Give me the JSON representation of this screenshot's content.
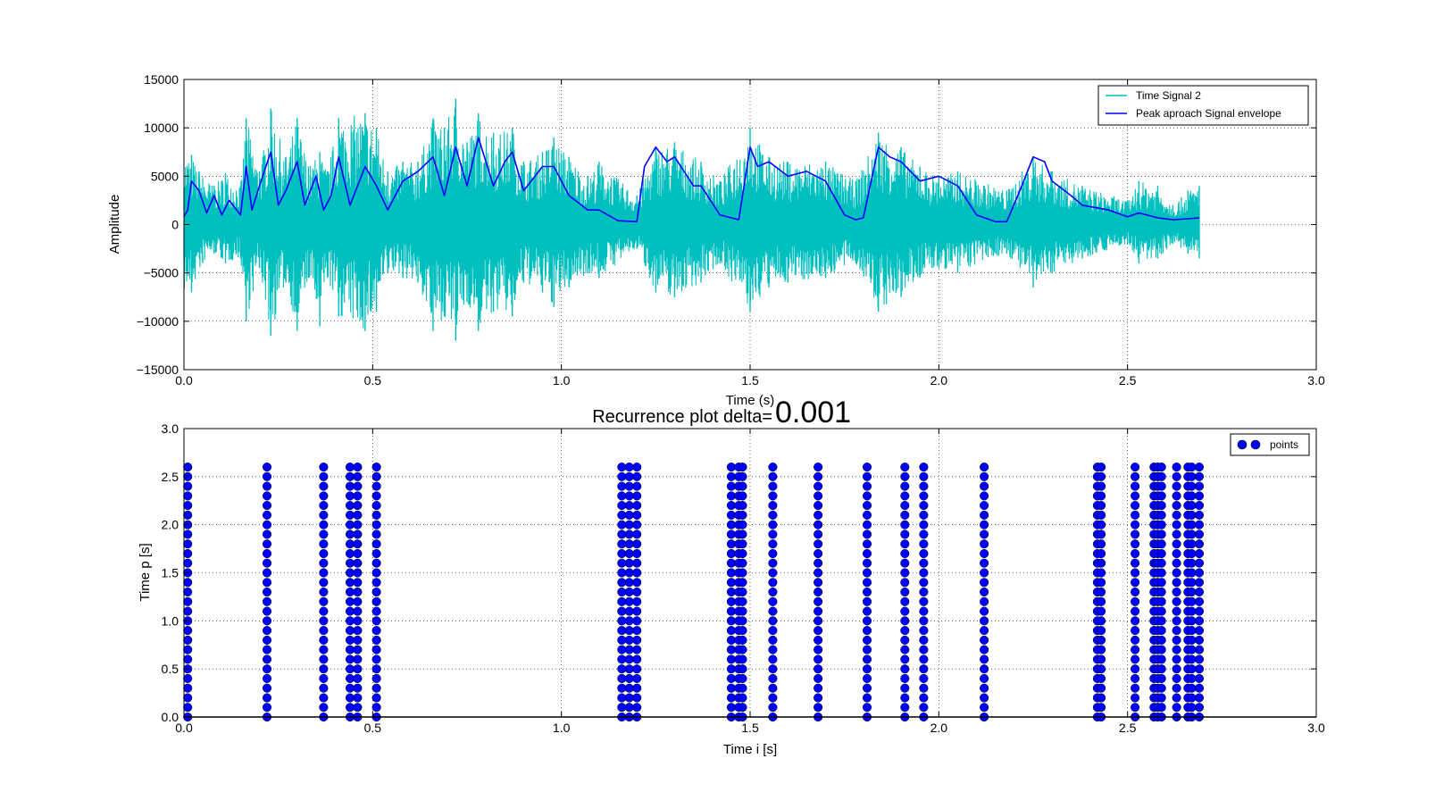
{
  "chart_data": [
    {
      "type": "line",
      "title": "",
      "xlabel": "Time (s)",
      "ylabel": "Amplitude",
      "xlim": [
        0.0,
        3.0
      ],
      "ylim": [
        -15000,
        15000
      ],
      "xticks": [
        "0.0",
        "0.5",
        "1.0",
        "1.5",
        "2.0",
        "2.5",
        "3.0"
      ],
      "yticks": [
        "15000",
        "10000",
        "5000",
        "0",
        "−5000",
        "−10000",
        "−15000"
      ],
      "xtick_values": [
        0.0,
        0.5,
        1.0,
        1.5,
        2.0,
        2.5,
        3.0
      ],
      "ytick_values": [
        15000,
        10000,
        5000,
        0,
        -5000,
        -10000,
        -15000
      ],
      "grid": true,
      "legend": "top-right",
      "signal_duration": 2.69,
      "series": [
        {
          "name": "Time Signal 2",
          "color": "#00bfbf",
          "description_peaks_pos": [
            [
              0.02,
              7200
            ],
            [
              0.04,
              5500
            ],
            [
              0.08,
              4000
            ],
            [
              0.11,
              5300
            ],
            [
              0.15,
              4000
            ],
            [
              0.165,
              11000
            ],
            [
              0.2,
              5500
            ],
            [
              0.23,
              12000
            ],
            [
              0.27,
              7000
            ],
            [
              0.3,
              11000
            ],
            [
              0.33,
              6000
            ],
            [
              0.36,
              7500
            ],
            [
              0.38,
              5500
            ],
            [
              0.41,
              11000
            ],
            [
              0.48,
              11500
            ],
            [
              0.51,
              10000
            ],
            [
              0.54,
              5500
            ],
            [
              0.58,
              6500
            ],
            [
              0.62,
              6500
            ],
            [
              0.66,
              11000
            ],
            [
              0.69,
              10000
            ],
            [
              0.72,
              13000
            ],
            [
              0.75,
              8500
            ],
            [
              0.78,
              11500
            ],
            [
              0.82,
              9500
            ],
            [
              0.87,
              10000
            ],
            [
              0.9,
              6500
            ],
            [
              0.95,
              7500
            ],
            [
              0.98,
              9000
            ],
            [
              1.02,
              7000
            ],
            [
              1.07,
              5000
            ],
            [
              1.1,
              6500
            ],
            [
              1.2,
              3000
            ],
            [
              1.25,
              8000
            ],
            [
              1.3,
              8500
            ],
            [
              1.37,
              6500
            ],
            [
              1.42,
              4500
            ],
            [
              1.5,
              10000
            ],
            [
              1.55,
              7000
            ],
            [
              1.6,
              6500
            ],
            [
              1.7,
              6500
            ],
            [
              1.78,
              4500
            ],
            [
              1.84,
              9500
            ],
            [
              1.9,
              8000
            ],
            [
              1.95,
              6000
            ],
            [
              2.0,
              5000
            ],
            [
              2.05,
              5500
            ],
            [
              2.18,
              3500
            ],
            [
              2.25,
              7000
            ],
            [
              2.3,
              5500
            ],
            [
              2.38,
              4000
            ],
            [
              2.5,
              2500
            ],
            [
              2.53,
              4500
            ],
            [
              2.58,
              4000
            ],
            [
              2.62,
              2000
            ],
            [
              2.66,
              3500
            ],
            [
              2.69,
              4000
            ]
          ],
          "description_peaks_neg": [
            [
              0.02,
              -7000
            ],
            [
              0.05,
              -4000
            ],
            [
              0.08,
              -3000
            ],
            [
              0.11,
              -4000
            ],
            [
              0.15,
              -3500
            ],
            [
              0.165,
              -10000
            ],
            [
              0.2,
              -4500
            ],
            [
              0.23,
              -11500
            ],
            [
              0.27,
              -6000
            ],
            [
              0.3,
              -11000
            ],
            [
              0.33,
              -5500
            ],
            [
              0.36,
              -10500
            ],
            [
              0.38,
              -5500
            ],
            [
              0.41,
              -9500
            ],
            [
              0.48,
              -11000
            ],
            [
              0.51,
              -9000
            ],
            [
              0.54,
              -5000
            ],
            [
              0.58,
              -5500
            ],
            [
              0.62,
              -6000
            ],
            [
              0.66,
              -11000
            ],
            [
              0.69,
              -9500
            ],
            [
              0.72,
              -12000
            ],
            [
              0.75,
              -8000
            ],
            [
              0.78,
              -11000
            ],
            [
              0.82,
              -9000
            ],
            [
              0.87,
              -9500
            ],
            [
              0.9,
              -6000
            ],
            [
              0.95,
              -7000
            ],
            [
              0.98,
              -8500
            ],
            [
              1.02,
              -6500
            ],
            [
              1.07,
              -5000
            ],
            [
              1.1,
              -5500
            ],
            [
              1.2,
              -2500
            ],
            [
              1.25,
              -7000
            ],
            [
              1.3,
              -7500
            ],
            [
              1.37,
              -6000
            ],
            [
              1.42,
              -4000
            ],
            [
              1.5,
              -9000
            ],
            [
              1.55,
              -6500
            ],
            [
              1.6,
              -6000
            ],
            [
              1.7,
              -5500
            ],
            [
              1.78,
              -4000
            ],
            [
              1.84,
              -9000
            ],
            [
              1.9,
              -7500
            ],
            [
              1.95,
              -5500
            ],
            [
              2.0,
              -4500
            ],
            [
              2.05,
              -5000
            ],
            [
              2.18,
              -3000
            ],
            [
              2.25,
              -6500
            ],
            [
              2.3,
              -5000
            ],
            [
              2.38,
              -3500
            ],
            [
              2.5,
              -2000
            ],
            [
              2.53,
              -4000
            ],
            [
              2.58,
              -3500
            ],
            [
              2.62,
              -2000
            ],
            [
              2.66,
              -3000
            ],
            [
              2.69,
              -3500
            ]
          ]
        },
        {
          "name": "Peak aproach Signal envelope",
          "color": "#0000ff",
          "x": [
            0.0,
            0.01,
            0.02,
            0.04,
            0.06,
            0.08,
            0.1,
            0.12,
            0.15,
            0.165,
            0.18,
            0.2,
            0.23,
            0.25,
            0.27,
            0.3,
            0.32,
            0.35,
            0.37,
            0.39,
            0.41,
            0.44,
            0.48,
            0.51,
            0.54,
            0.58,
            0.62,
            0.66,
            0.69,
            0.72,
            0.75,
            0.78,
            0.82,
            0.85,
            0.87,
            0.9,
            0.95,
            0.98,
            1.02,
            1.07,
            1.1,
            1.15,
            1.2,
            1.22,
            1.25,
            1.28,
            1.3,
            1.35,
            1.37,
            1.42,
            1.47,
            1.5,
            1.52,
            1.55,
            1.6,
            1.65,
            1.7,
            1.75,
            1.78,
            1.8,
            1.84,
            1.87,
            1.9,
            1.95,
            2.0,
            2.05,
            2.1,
            2.15,
            2.18,
            2.22,
            2.25,
            2.28,
            2.3,
            2.35,
            2.38,
            2.45,
            2.5,
            2.53,
            2.58,
            2.62,
            2.66,
            2.69
          ],
          "y": [
            800,
            1500,
            4500,
            3500,
            1200,
            3000,
            1000,
            2500,
            1000,
            6000,
            1500,
            4000,
            7500,
            2000,
            3500,
            6500,
            2000,
            5000,
            1500,
            3000,
            7000,
            2000,
            6000,
            4000,
            1500,
            4500,
            5500,
            7000,
            3000,
            8000,
            4000,
            9000,
            4000,
            6500,
            7500,
            3500,
            6000,
            6000,
            3000,
            1500,
            1500,
            400,
            300,
            6000,
            8000,
            6500,
            7000,
            4000,
            4000,
            1000,
            500,
            8000,
            6000,
            6500,
            5000,
            5500,
            4500,
            1000,
            500,
            700,
            8000,
            7000,
            6500,
            4500,
            5000,
            4000,
            1000,
            300,
            300,
            4000,
            7000,
            6500,
            4500,
            3000,
            2000,
            1500,
            800,
            1200,
            700,
            500,
            600,
            700
          ]
        }
      ]
    },
    {
      "type": "scatter",
      "title": "Recurrence plot delta=",
      "title_value": "0.001",
      "xlabel": "Time i [s]",
      "ylabel": "Time p [s]",
      "xlim": [
        0.0,
        3.0
      ],
      "ylim": [
        0.0,
        3.0
      ],
      "xticks": [
        "0.0",
        "0.5",
        "1.0",
        "1.5",
        "2.0",
        "2.5",
        "3.0"
      ],
      "yticks": [
        "3.0",
        "2.5",
        "2.0",
        "1.5",
        "1.0",
        "0.5",
        "0.0"
      ],
      "xtick_values": [
        0.0,
        0.5,
        1.0,
        1.5,
        2.0,
        2.5,
        3.0
      ],
      "ytick_values": [
        3.0,
        2.5,
        2.0,
        1.5,
        1.0,
        0.5,
        0.0
      ],
      "grid": true,
      "legend": "top-right",
      "series": [
        {
          "name": "points",
          "color": "#0000ff",
          "columns_x": [
            0.01,
            0.22,
            0.37,
            0.44,
            0.46,
            0.51,
            1.16,
            1.18,
            1.2,
            1.45,
            1.47,
            1.48,
            1.56,
            1.68,
            1.81,
            1.91,
            1.96,
            2.12,
            2.42,
            2.43,
            2.52,
            2.57,
            2.58,
            2.59,
            2.63,
            2.66,
            2.67,
            2.69
          ],
          "y_start": 0.0,
          "y_end": 2.6,
          "y_step": 0.1
        }
      ]
    }
  ]
}
